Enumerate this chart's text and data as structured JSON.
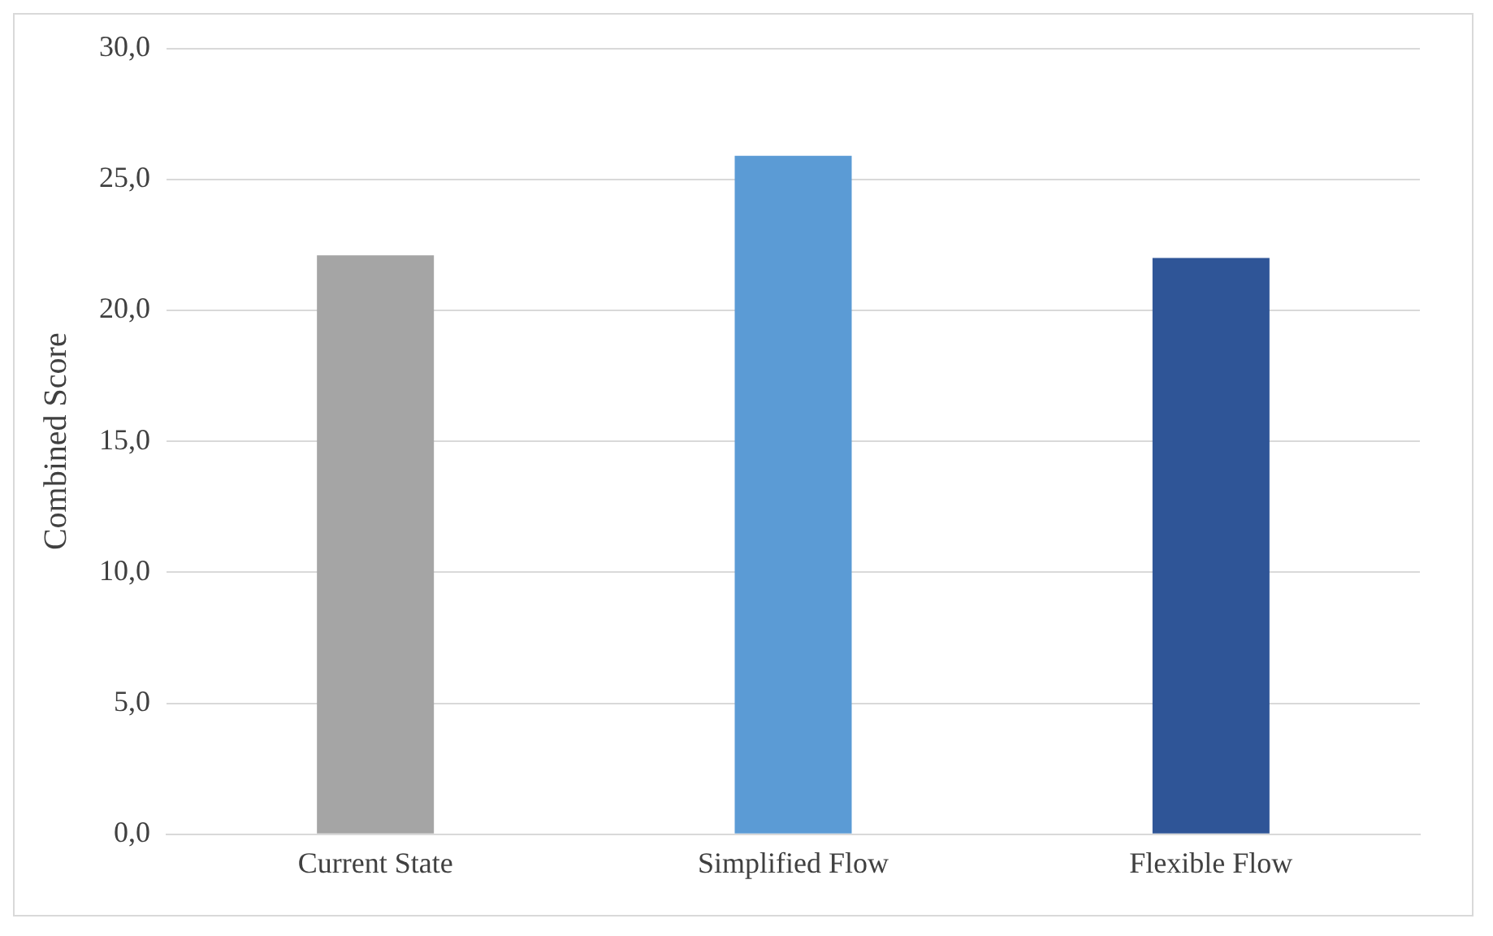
{
  "chart_data": {
    "type": "bar",
    "ylabel": "Combined Score",
    "categories": [
      "Current State",
      "Simplified Flow",
      "Flexible Flow"
    ],
    "values": [
      22.1,
      25.9,
      22.0
    ],
    "colors": [
      "#a5a5a5",
      "#5b9bd5",
      "#2f5597"
    ],
    "ylim": [
      0,
      30
    ],
    "yticks": [
      {
        "value": 0,
        "label": "0,0"
      },
      {
        "value": 5,
        "label": "5,0"
      },
      {
        "value": 10,
        "label": "10,0"
      },
      {
        "value": 15,
        "label": "15,0"
      },
      {
        "value": 20,
        "label": "20,0"
      },
      {
        "value": 25,
        "label": "25,0"
      },
      {
        "value": 30,
        "label": "30,0"
      }
    ],
    "grid": "y",
    "legend": false
  }
}
